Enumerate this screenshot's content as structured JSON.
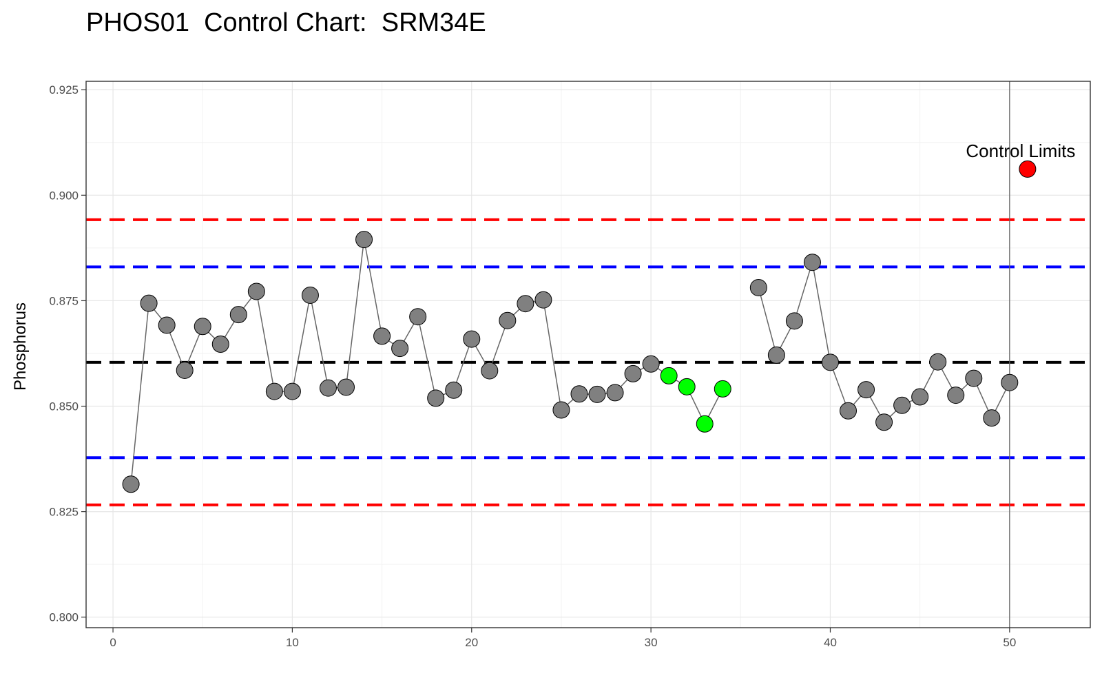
{
  "chart_data": {
    "type": "scatter",
    "title": "PHOS01  Control Chart:  SRM34E",
    "xlabel": "",
    "ylabel": "Phosphorus",
    "xlim": [
      -1.5,
      54.5
    ],
    "ylim": [
      0.7975,
      0.927
    ],
    "x_ticks": [
      0,
      10,
      20,
      30,
      40,
      50
    ],
    "y_ticks": [
      0.8,
      0.825,
      0.85,
      0.875,
      0.9,
      0.925
    ],
    "x_tick_labels": [
      "0",
      "10",
      "20",
      "30",
      "40",
      "50"
    ],
    "y_tick_labels": [
      "0.800",
      "0.825",
      "0.850",
      "0.875",
      "0.900",
      "0.925"
    ],
    "grid": true,
    "vertical_line_x": 50,
    "reference_lines": [
      {
        "name": "upper control limit",
        "y": 0.8942,
        "color": "#ff0000"
      },
      {
        "name": "upper warning limit",
        "y": 0.883,
        "color": "#0000ff"
      },
      {
        "name": "center line",
        "y": 0.8604,
        "color": "#000000"
      },
      {
        "name": "lower warning limit",
        "y": 0.8378,
        "color": "#0000ff"
      },
      {
        "name": "lower control limit",
        "y": 0.8266,
        "color": "#ff0000"
      }
    ],
    "series": [
      {
        "line_color": "#666666",
        "point_color": "#808080",
        "segments": [
          [
            [
              1,
              0.8315
            ],
            [
              2,
              0.8744
            ],
            [
              3,
              0.8692
            ],
            [
              4,
              0.8585
            ],
            [
              5,
              0.8689
            ],
            [
              6,
              0.8647
            ],
            [
              7,
              0.8717
            ],
            [
              8,
              0.8772
            ],
            [
              9,
              0.8535
            ],
            [
              10,
              0.8535
            ],
            [
              11,
              0.8763
            ],
            [
              12,
              0.8543
            ],
            [
              13,
              0.8545
            ],
            [
              14,
              0.8895
            ],
            [
              15,
              0.8666
            ],
            [
              16,
              0.8637
            ],
            [
              17,
              0.8712
            ],
            [
              18,
              0.8519
            ],
            [
              19,
              0.8538
            ],
            [
              20,
              0.8659
            ],
            [
              21,
              0.8584
            ],
            [
              22,
              0.8703
            ],
            [
              23,
              0.8743
            ],
            [
              24,
              0.8752
            ],
            [
              25,
              0.8491
            ],
            [
              26,
              0.8529
            ],
            [
              27,
              0.8528
            ],
            [
              28,
              0.8532
            ],
            [
              29,
              0.8577
            ],
            [
              30,
              0.86
            ],
            [
              31,
              0.8572
            ],
            [
              32,
              0.8546
            ],
            [
              33,
              0.8458
            ],
            [
              34,
              0.8541
            ]
          ],
          [
            [
              36,
              0.8781
            ],
            [
              37,
              0.8621
            ],
            [
              38,
              0.8702
            ],
            [
              39,
              0.8841
            ],
            [
              40,
              0.8604
            ],
            [
              41,
              0.8489
            ],
            [
              42,
              0.8539
            ],
            [
              43,
              0.8462
            ],
            [
              44,
              0.8502
            ],
            [
              45,
              0.8522
            ],
            [
              46,
              0.8605
            ],
            [
              47,
              0.8526
            ],
            [
              48,
              0.8566
            ],
            [
              49,
              0.8472
            ],
            [
              50,
              0.8556
            ]
          ]
        ],
        "highlight_points": [
          [
            31,
            0.8572
          ],
          [
            32,
            0.8546
          ],
          [
            33,
            0.8458
          ],
          [
            34,
            0.8541
          ]
        ],
        "highlight_color": "#00ff00"
      }
    ],
    "current_point": {
      "x": 51,
      "y": 0.9062,
      "color": "#ff0000"
    },
    "annotation": {
      "text": "Control Limits",
      "x": 51,
      "y": 0.9105
    }
  }
}
